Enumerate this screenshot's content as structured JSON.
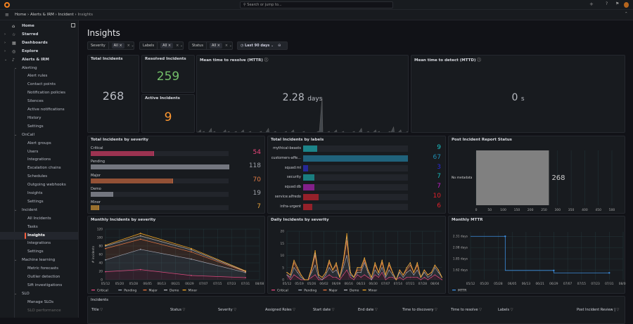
{
  "topbar": {
    "search_placeholder": "Search or jump to...",
    "new_label": "+"
  },
  "breadcrumb": [
    "Home",
    "Alerts & IRM",
    "Incident",
    "Insights"
  ],
  "sidebar": {
    "items": [
      {
        "label": "Home",
        "level": 0,
        "icon": "home-icon",
        "glyph": "⌂"
      },
      {
        "label": "Starred",
        "level": 0,
        "icon": "star-icon",
        "glyph": "☆",
        "caret": "›"
      },
      {
        "label": "Dashboards",
        "level": 0,
        "icon": "dashboards-icon",
        "glyph": "▦",
        "caret": "›"
      },
      {
        "label": "Explore",
        "level": 0,
        "icon": "compass-icon",
        "glyph": "◎",
        "caret": "›"
      },
      {
        "label": "Alerts & IRM",
        "level": 0,
        "icon": "bell-icon",
        "glyph": "♪",
        "caret": "⌄"
      },
      {
        "label": "Alerting",
        "level": 1,
        "caret": "⌄"
      },
      {
        "label": "Alert rules",
        "level": 2
      },
      {
        "label": "Contact points",
        "level": 2
      },
      {
        "label": "Notification policies",
        "level": 2
      },
      {
        "label": "Silences",
        "level": 2
      },
      {
        "label": "Active notifications",
        "level": 2
      },
      {
        "label": "History",
        "level": 2
      },
      {
        "label": "Settings",
        "level": 2
      },
      {
        "label": "OnCall",
        "level": 1,
        "caret": "⌄"
      },
      {
        "label": "Alert groups",
        "level": 2
      },
      {
        "label": "Users",
        "level": 2
      },
      {
        "label": "Integrations",
        "level": 2
      },
      {
        "label": "Escalation chains",
        "level": 2
      },
      {
        "label": "Schedules",
        "level": 2
      },
      {
        "label": "Outgoing webhooks",
        "level": 2
      },
      {
        "label": "Insights",
        "level": 2
      },
      {
        "label": "Settings",
        "level": 2
      },
      {
        "label": "Incident",
        "level": 1,
        "caret": "⌄"
      },
      {
        "label": "All Incidents",
        "level": 2
      },
      {
        "label": "Tasks",
        "level": 2
      },
      {
        "label": "Insights",
        "level": 2,
        "active": true
      },
      {
        "label": "Integrations",
        "level": 2
      },
      {
        "label": "Settings",
        "level": 2
      },
      {
        "label": "Machine learning",
        "level": 1,
        "caret": "⌄"
      },
      {
        "label": "Metric forecasts",
        "level": 2
      },
      {
        "label": "Outlier detection",
        "level": 2
      },
      {
        "label": "Sift investigations",
        "level": 2
      },
      {
        "label": "SLO",
        "level": 1,
        "caret": "⌄"
      },
      {
        "label": "Manage SLOs",
        "level": 2
      },
      {
        "label": "SLO performance",
        "level": 2
      }
    ]
  },
  "page": {
    "title": "Insights"
  },
  "filters": [
    {
      "label": "Severity",
      "value": "All"
    },
    {
      "label": "Labels",
      "value": "All"
    },
    {
      "label": "Status",
      "value": "All"
    }
  ],
  "time_range": "Last 90 days",
  "stats": {
    "total": {
      "title": "Total Incidents",
      "value": "268"
    },
    "resolved": {
      "title": "Resolved Incidents",
      "value": "259",
      "color": "#73bf69"
    },
    "active": {
      "title": "Active Incidents",
      "value": "9",
      "color": "#ff9830"
    },
    "mttr": {
      "title": "Mean time to resolve (MTTR)",
      "value": "2.28",
      "unit": "days",
      "sparkline": [
        1,
        2,
        1,
        0,
        3,
        1,
        0,
        0,
        2,
        1,
        0,
        1,
        0,
        2,
        0,
        1,
        0,
        0,
        1,
        0,
        3,
        0,
        1,
        0,
        0,
        1,
        0,
        2,
        0,
        0,
        1,
        0,
        0,
        0,
        1,
        24,
        0,
        1,
        0,
        2,
        0,
        1,
        0,
        0,
        1,
        0,
        3,
        0,
        1,
        0,
        2,
        1,
        0,
        0,
        1,
        4,
        0,
        2,
        0,
        1
      ]
    },
    "mttd": {
      "title": "Mean time to detect (MTTD)",
      "value": "0",
      "unit": "s"
    }
  },
  "severity_panel": {
    "title": "Total Incidents by severity",
    "max": 118,
    "items": [
      {
        "label": "Critical",
        "value": 54,
        "color": "#c4385e",
        "text_color": "#e8457a"
      },
      {
        "label": "Pending",
        "value": 118,
        "color": "#8e929b",
        "text_color": "#9ca0a8"
      },
      {
        "label": "Major",
        "value": 70,
        "color": "#b9603a",
        "text_color": "#e07b46"
      },
      {
        "label": "Demo",
        "value": 19,
        "color": "#8e929b",
        "text_color": "#9ca0a8"
      },
      {
        "label": "Minor",
        "value": 7,
        "color": "#c0882f",
        "text_color": "#e8a33b"
      }
    ]
  },
  "labels_panel": {
    "title": "Total Incidents by labels",
    "max": 67,
    "items": [
      {
        "label": "mythical-beasts",
        "value": 9,
        "color": "#19c4c8"
      },
      {
        "label": "customers-affe...",
        "value": 67,
        "color": "#1f8bb0"
      },
      {
        "label": "squad:ml",
        "value": 3,
        "color": "#2a2ae0"
      },
      {
        "label": "security",
        "value": 7,
        "color": "#16b8b8"
      },
      {
        "label": "squad:db",
        "value": 7,
        "color": "#c21ec8"
      },
      {
        "label": "service:alfredo",
        "value": 10,
        "color": "#e0202a"
      },
      {
        "label": "infra-urgent",
        "value": 6,
        "color": "#e0202a"
      }
    ]
  },
  "chart_data": [
    {
      "type": "bar",
      "title": "Post Incident Report Status",
      "orientation": "horizontal",
      "categories": [
        "No metadata"
      ],
      "values": [
        268
      ],
      "xlim": [
        0,
        500
      ],
      "xticks": [
        0,
        50,
        100,
        150,
        200,
        250,
        300,
        350,
        400,
        450,
        500
      ],
      "color": "#808080"
    },
    {
      "type": "area",
      "stacked": true,
      "title": "Monthly Incidents by severity",
      "ylabel": "# incidents",
      "ylim": [
        0,
        120
      ],
      "yticks": [
        0,
        20,
        40,
        60,
        80,
        100,
        120
      ],
      "xticks": [
        "05/12",
        "05/20",
        "05/28",
        "06/05",
        "06/13",
        "06/21",
        "06/29",
        "07/07",
        "07/15",
        "07/23",
        "07/31",
        "08/08"
      ],
      "x": [
        "05/12",
        "06/01",
        "06/30",
        "07/31"
      ],
      "series": [
        {
          "name": "Critical",
          "color": "#e0457b",
          "values": [
            19,
            24,
            10,
            5
          ]
        },
        {
          "name": "Pending",
          "color": "#9da5b5",
          "values": [
            28,
            48,
            39,
            12
          ]
        },
        {
          "name": "Major",
          "color": "#e8743b",
          "values": [
            27,
            24,
            17,
            2
          ]
        },
        {
          "name": "Demo",
          "color": "#b0b0b8",
          "values": [
            6,
            8,
            5,
            1
          ]
        },
        {
          "name": "Minor",
          "color": "#f5a623",
          "values": [
            2,
            6,
            3,
            1
          ]
        }
      ],
      "legend": "bottom"
    },
    {
      "type": "area",
      "stacked": true,
      "title": "Daily Incidents by severity",
      "ylim": [
        0,
        20
      ],
      "yticks": [
        0,
        5,
        10,
        15,
        20
      ],
      "xticks": [
        "05/12",
        "05/19",
        "05/26",
        "06/02",
        "06/09",
        "06/16",
        "06/23",
        "06/30",
        "07/07",
        "07/14",
        "07/21",
        "07/28",
        "08/04"
      ],
      "x": [
        "05/12",
        "05/14",
        "05/16",
        "05/18",
        "05/20",
        "05/22",
        "05/24",
        "05/26",
        "05/28",
        "05/30",
        "06/01",
        "06/03",
        "06/05",
        "06/07",
        "06/09",
        "06/11",
        "06/13",
        "06/15",
        "06/17",
        "06/19",
        "06/21",
        "06/23",
        "06/25",
        "06/27",
        "06/29",
        "07/01",
        "07/03",
        "07/05",
        "07/07",
        "07/09",
        "07/11",
        "07/13",
        "07/15",
        "07/17",
        "07/19",
        "07/21",
        "07/23",
        "07/25",
        "07/27",
        "07/29",
        "07/31",
        "08/02",
        "08/04",
        "08/06",
        "08/08"
      ],
      "series": [
        {
          "name": "Critical",
          "color": "#e0457b",
          "values": [
            2,
            0,
            2,
            1,
            0,
            0,
            0,
            1,
            2,
            0,
            0,
            1,
            2,
            1,
            1,
            0,
            2,
            4,
            1,
            0,
            2,
            1,
            2,
            1,
            0,
            2,
            1,
            3,
            0,
            1,
            1,
            0,
            1,
            0,
            1,
            1,
            1,
            1,
            0,
            1,
            0,
            1,
            2,
            1,
            0
          ]
        },
        {
          "name": "Pending",
          "color": "#9da5b5",
          "values": [
            0,
            1,
            3,
            2,
            1,
            0,
            0,
            2,
            4,
            1,
            0,
            1,
            3,
            2,
            3,
            1,
            3,
            6,
            1,
            1,
            1,
            2,
            5,
            2,
            0,
            2,
            1,
            2,
            1,
            3,
            1,
            0,
            2,
            1,
            2,
            3,
            1,
            3,
            1,
            2,
            1,
            1,
            3,
            2,
            1
          ]
        },
        {
          "name": "Major",
          "color": "#e8743b",
          "values": [
            1,
            1,
            2,
            1,
            1,
            0,
            0,
            1,
            4,
            1,
            1,
            1,
            2,
            1,
            2,
            0,
            2,
            6,
            1,
            0,
            1,
            1,
            1,
            1,
            1,
            2,
            1,
            2,
            1,
            2,
            1,
            0,
            1,
            1,
            1,
            2,
            1,
            2,
            0,
            1,
            1,
            1,
            1,
            1,
            0
          ]
        },
        {
          "name": "Demo",
          "color": "#b0b0b8",
          "values": [
            0,
            0,
            1,
            1,
            0,
            0,
            0,
            1,
            1,
            0,
            0,
            0,
            1,
            0,
            1,
            0,
            1,
            2,
            0,
            0,
            1,
            1,
            1,
            0,
            0,
            1,
            0,
            1,
            0,
            1,
            0,
            0,
            0,
            0,
            1,
            1,
            0,
            1,
            0,
            0,
            0,
            0,
            0,
            0,
            0
          ]
        },
        {
          "name": "Minor",
          "color": "#f5a623",
          "values": [
            0,
            0,
            0,
            0,
            0,
            0,
            0,
            0,
            1,
            0,
            0,
            0,
            0,
            0,
            0,
            0,
            0,
            1,
            0,
            0,
            0,
            0,
            0,
            0,
            0,
            0,
            0,
            0,
            0,
            0,
            0,
            0,
            0,
            0,
            0,
            0,
            0,
            0,
            0,
            0,
            0,
            0,
            0,
            0,
            0
          ]
        }
      ],
      "legend": "bottom"
    },
    {
      "type": "line",
      "title": "Monthly MTTR",
      "interpolation": "step",
      "ylim": [
        1.42,
        2.4
      ],
      "yticks": [
        1.62,
        1.85,
        2.08,
        2.31
      ],
      "ytick_labels": [
        "1.62 days",
        "1.85 days",
        "2.08 days",
        "2.31 days"
      ],
      "xticks": [
        "05/12",
        "05/20",
        "05/28",
        "06/05",
        "06/13",
        "06/21",
        "06/29",
        "07/07",
        "07/15",
        "07/23",
        "07/31",
        "08/08"
      ],
      "x": [
        "06/01",
        "06/29",
        "07/31"
      ],
      "series": [
        {
          "name": "MTTR",
          "color": "#3d8ee0",
          "values": [
            2.31,
            1.61,
            1.56
          ]
        }
      ],
      "legend": "bottom"
    }
  ],
  "incidents_table": {
    "title": "Incidents",
    "columns": [
      "Title",
      "Status",
      "Severity",
      "Assigned Roles",
      "Start date",
      "End date",
      "Time to discovery",
      "Time to resolve",
      "Labels",
      "Post Incident Review |"
    ]
  }
}
